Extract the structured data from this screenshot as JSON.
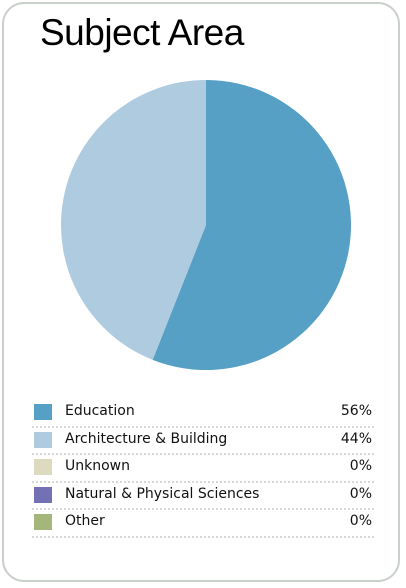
{
  "chart_data": {
    "type": "pie",
    "title": "Subject Area",
    "slices": [
      {
        "label": "Education",
        "value": 56,
        "display": "56%",
        "color": "#569fc5"
      },
      {
        "label": "Architecture & Building",
        "value": 44,
        "display": "44%",
        "color": "#aecbe0"
      },
      {
        "label": "Unknown",
        "value": 0,
        "display": "0%",
        "color": "#dddac0"
      },
      {
        "label": "Natural & Physical Sciences",
        "value": 0,
        "display": "0%",
        "color": "#7470b4"
      },
      {
        "label": "Other",
        "value": 0,
        "display": "0%",
        "color": "#a5b67a"
      }
    ],
    "legend": "bottom"
  }
}
